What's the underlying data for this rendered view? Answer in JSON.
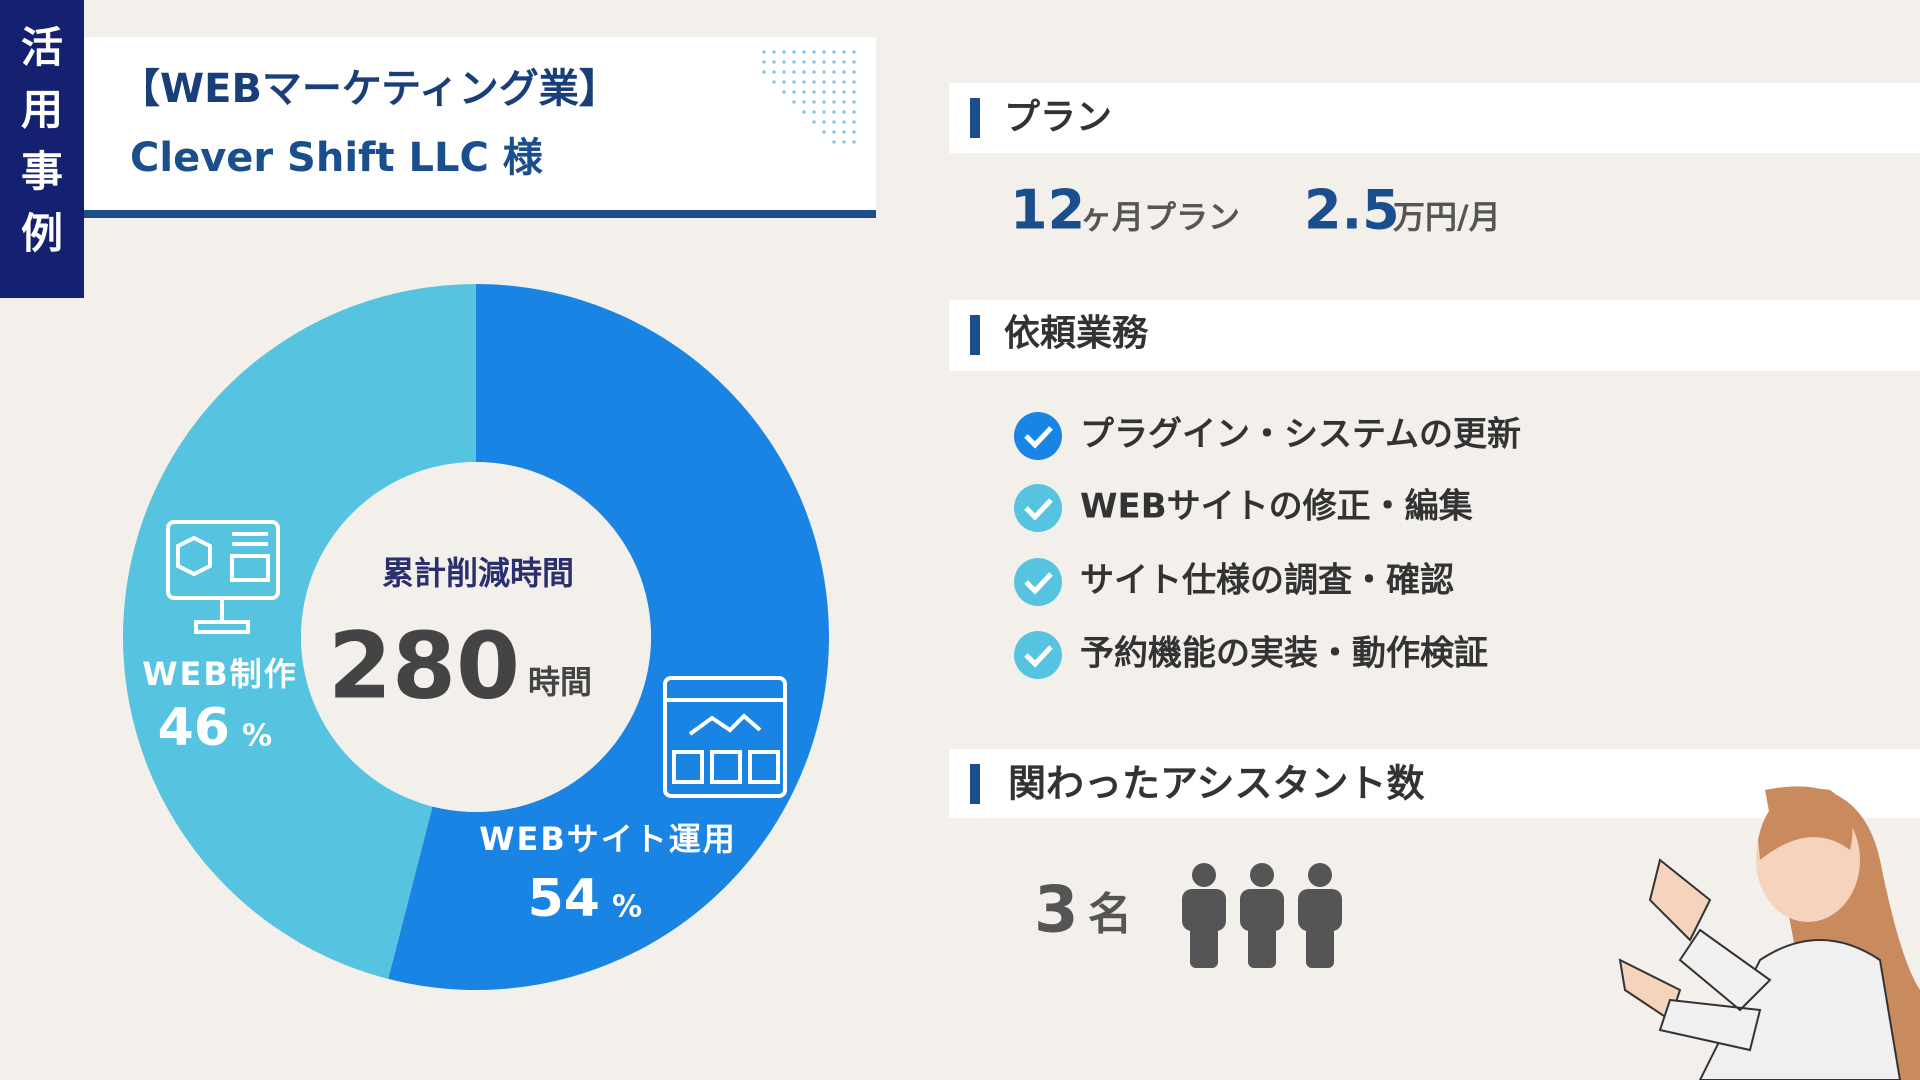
{
  "badge": "活用事例",
  "header": {
    "title": "【WEBマーケティング業】",
    "subtitle": "Clever Shift LLC 様"
  },
  "chart_data": {
    "type": "donut",
    "title": "累計削減時間",
    "total": "280",
    "total_unit": "時間",
    "value_unit": "%",
    "categories": [
      "WEBサイト運用",
      "WEB制作"
    ],
    "values": [
      54,
      46
    ],
    "colors": [
      "#1984e3",
      "#56c4e0"
    ]
  },
  "plan": {
    "heading": "プラン",
    "term": "12",
    "term_unit": "ヶ月プラン",
    "price": "2.5",
    "price_unit": "万円/月"
  },
  "tasks": {
    "heading": "依頼業務",
    "items": [
      "プラグイン・システムの更新",
      "WEBサイトの修正・編集",
      "サイト仕様の調査・確認",
      "予約機能の実装・動作検証"
    ]
  },
  "assistants": {
    "heading": "関わったアシスタント数",
    "count": "3",
    "unit": "名"
  }
}
